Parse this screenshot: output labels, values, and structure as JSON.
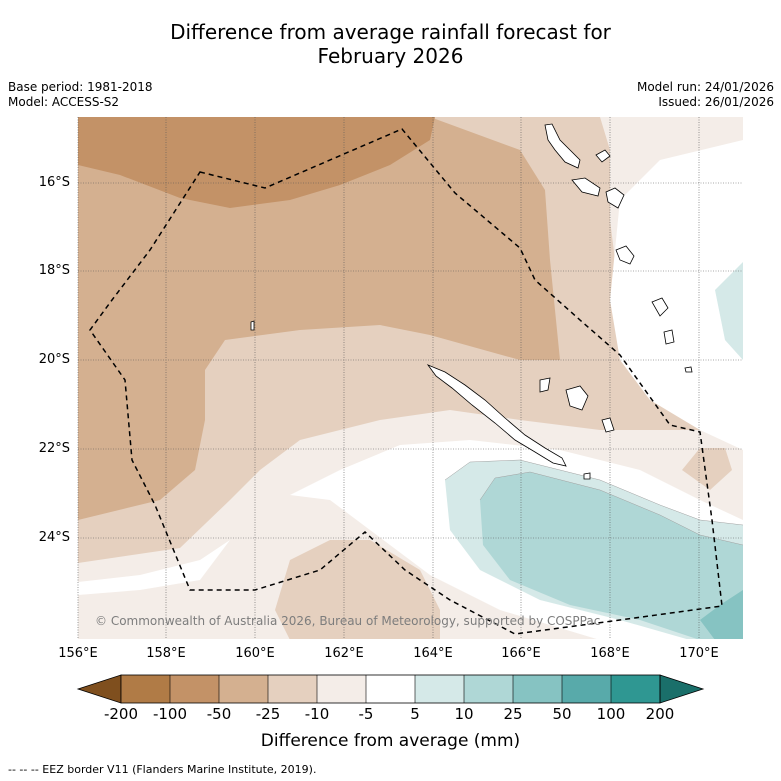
{
  "title_line1": "Difference from average rainfall forecast for",
  "title_line2": "February 2026",
  "meta": {
    "base_period": "Base period: 1981-2018",
    "model": "Model: ACCESS-S2",
    "model_run": "Model run: 24/01/2026",
    "issued": "Issued: 26/01/2026"
  },
  "map": {
    "lat_labels": [
      "16°S",
      "18°S",
      "20°S",
      "22°S",
      "24°S"
    ],
    "lon_labels": [
      "156°E",
      "158°E",
      "160°E",
      "162°E",
      "164°E",
      "166°E",
      "168°E",
      "170°E"
    ],
    "credit": "© Commonwealth of Australia 2026, Bureau of Meteorology, supported by COSPPac",
    "colors": {
      "minus_200": "#7f4f1e",
      "minus_100": "#b07b46",
      "minus_50": "#c39267",
      "minus_25": "#d4b090",
      "minus_10": "#e5d0bf",
      "minus_5": "#f4ede8",
      "neutral": "#ffffff",
      "plus_5": "#d5e9e8",
      "plus_10": "#afd7d6",
      "plus_25": "#86c3c2",
      "plus_50": "#58aaaa",
      "plus_100": "#2f9792",
      "plus_200": "#1a6f6a"
    }
  },
  "colorbar": {
    "ticks": [
      "-200",
      "-100",
      "-50",
      "-25",
      "-10",
      "-5",
      "5",
      "10",
      "25",
      "50",
      "100",
      "200"
    ],
    "label": "Difference from average (mm)"
  },
  "footer": "--  --  -- EEZ border V11 (Flanders Marine Institute, 2019)."
}
